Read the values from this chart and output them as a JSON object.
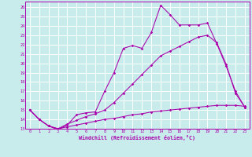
{
  "title": "Windchill (Refroidissement éolien,°C)",
  "background_color": "#c8ecec",
  "grid_color": "#ffffff",
  "line_color": "#aa00aa",
  "xlim_min": -0.5,
  "xlim_max": 23.5,
  "ylim_min": 13,
  "ylim_max": 26.6,
  "xticks": [
    0,
    1,
    2,
    3,
    4,
    5,
    6,
    7,
    8,
    9,
    10,
    11,
    12,
    13,
    14,
    15,
    16,
    17,
    18,
    19,
    20,
    21,
    22,
    23
  ],
  "yticks": [
    13,
    14,
    15,
    16,
    17,
    18,
    19,
    20,
    21,
    22,
    23,
    24,
    25,
    26
  ],
  "line1_x": [
    0,
    1,
    2,
    3,
    4,
    5,
    6,
    7,
    8,
    9,
    10,
    11,
    12,
    13,
    14,
    15,
    16,
    17,
    18,
    19,
    20,
    21,
    22,
    23
  ],
  "line1_y": [
    15.0,
    14.0,
    13.3,
    12.9,
    13.4,
    14.5,
    14.7,
    14.8,
    17.0,
    19.0,
    21.6,
    21.9,
    21.6,
    23.3,
    26.2,
    25.2,
    24.1,
    24.1,
    24.1,
    24.3,
    22.1,
    19.7,
    17.0,
    15.3
  ],
  "line2_x": [
    0,
    1,
    2,
    3,
    4,
    5,
    6,
    7,
    8,
    9,
    10,
    11,
    12,
    13,
    14,
    15,
    16,
    17,
    18,
    19,
    20,
    21,
    22,
    23
  ],
  "line2_y": [
    15.0,
    14.0,
    13.3,
    13.0,
    13.5,
    13.9,
    14.3,
    14.6,
    15.0,
    15.8,
    16.8,
    17.8,
    18.8,
    19.8,
    20.8,
    21.3,
    21.8,
    22.3,
    22.8,
    23.0,
    22.2,
    19.9,
    16.8,
    15.3
  ],
  "line3_x": [
    0,
    1,
    2,
    3,
    4,
    5,
    6,
    7,
    8,
    9,
    10,
    11,
    12,
    13,
    14,
    15,
    16,
    17,
    18,
    19,
    20,
    21,
    22,
    23
  ],
  "line3_y": [
    15.0,
    14.0,
    13.3,
    13.0,
    13.2,
    13.4,
    13.6,
    13.8,
    14.0,
    14.1,
    14.3,
    14.5,
    14.6,
    14.8,
    14.9,
    15.0,
    15.1,
    15.2,
    15.3,
    15.4,
    15.5,
    15.5,
    15.5,
    15.4
  ]
}
